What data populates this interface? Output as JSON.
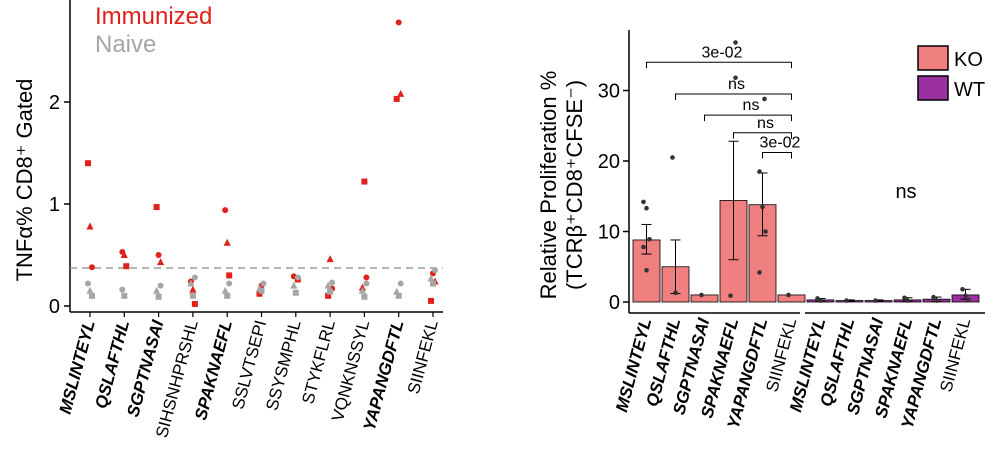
{
  "chart_data": [
    {
      "type": "scatter",
      "ylabel": "TNFα% CD8⁺ Gated",
      "ylim": [
        0,
        2.9
      ],
      "yticks": [
        0,
        1,
        2
      ],
      "threshold": 0.4,
      "legend": [
        {
          "name": "Immunized",
          "color": "#e0201c"
        },
        {
          "name": "Naive",
          "color": "#a6a6a6"
        }
      ],
      "categories": [
        {
          "name": "MSLINTEYL",
          "bold": true,
          "grey": false
        },
        {
          "name": "QSLAFTHL",
          "bold": true,
          "grey": false
        },
        {
          "name": "SGPTNASAI",
          "bold": true,
          "grey": false
        },
        {
          "name": "SIHSNHPRSHL",
          "bold": false,
          "grey": false
        },
        {
          "name": "SPAKNAEFL",
          "bold": true,
          "grey": false
        },
        {
          "name": "SSLVTSEPI",
          "bold": false,
          "grey": false
        },
        {
          "name": "SSYSMPHL",
          "bold": false,
          "grey": false
        },
        {
          "name": "STYKFLRL",
          "bold": false,
          "grey": false
        },
        {
          "name": "VQNKNSSYL",
          "bold": false,
          "grey": false
        },
        {
          "name": "YAPANGDFTL",
          "bold": true,
          "grey": false
        },
        {
          "name": "SIINFEKL",
          "bold": false,
          "grey": true
        }
      ],
      "series": [
        {
          "name": "Immunized",
          "color": "#e0201c",
          "points": [
            [
              0,
              1.4,
              "s"
            ],
            [
              0,
              0.78,
              "t"
            ],
            [
              0,
              0.38,
              "c"
            ],
            [
              1,
              0.53,
              "c"
            ],
            [
              1,
              0.5,
              "t"
            ],
            [
              1,
              0.39,
              "s"
            ],
            [
              2,
              0.97,
              "s"
            ],
            [
              2,
              0.5,
              "c"
            ],
            [
              2,
              0.43,
              "t"
            ],
            [
              3,
              0.24,
              "c"
            ],
            [
              3,
              0.16,
              "t"
            ],
            [
              3,
              0.02,
              "s"
            ],
            [
              4,
              0.94,
              "c"
            ],
            [
              4,
              0.62,
              "t"
            ],
            [
              4,
              0.3,
              "s"
            ],
            [
              5,
              0.12,
              "s"
            ],
            [
              5,
              0.2,
              "c"
            ],
            [
              6,
              0.26,
              "s"
            ],
            [
              6,
              0.29,
              "c"
            ],
            [
              7,
              0.46,
              "t"
            ],
            [
              7,
              0.17,
              "c"
            ],
            [
              7,
              0.1,
              "s"
            ],
            [
              8,
              1.22,
              "s"
            ],
            [
              8,
              0.28,
              "c"
            ],
            [
              8,
              0.18,
              "t"
            ],
            [
              9,
              2.78,
              "c"
            ],
            [
              9,
              2.08,
              "t"
            ],
            [
              9,
              2.03,
              "s"
            ],
            [
              10,
              0.32,
              "c"
            ],
            [
              10,
              0.24,
              "t"
            ],
            [
              10,
              0.05,
              "s"
            ]
          ]
        },
        {
          "name": "Naive",
          "color": "#a6a6a6",
          "points": [
            [
              0,
              0.22,
              "c"
            ],
            [
              0,
              0.15,
              "t"
            ],
            [
              0,
              0.1,
              "s"
            ],
            [
              1,
              0.16,
              "c"
            ],
            [
              1,
              0.1,
              "s"
            ],
            [
              2,
              0.2,
              "c"
            ],
            [
              2,
              0.15,
              "t"
            ],
            [
              2,
              0.09,
              "s"
            ],
            [
              3,
              0.28,
              "c"
            ],
            [
              3,
              0.22,
              "t"
            ],
            [
              3,
              0.1,
              "s"
            ],
            [
              4,
              0.22,
              "c"
            ],
            [
              4,
              0.15,
              "t"
            ],
            [
              4,
              0.1,
              "s"
            ],
            [
              5,
              0.22,
              "c"
            ],
            [
              5,
              0.17,
              "t"
            ],
            [
              5,
              0.15,
              "s"
            ],
            [
              6,
              0.28,
              "c"
            ],
            [
              6,
              0.2,
              "t"
            ],
            [
              6,
              0.13,
              "s"
            ],
            [
              7,
              0.23,
              "c"
            ],
            [
              7,
              0.2,
              "t"
            ],
            [
              7,
              0.14,
              "s"
            ],
            [
              8,
              0.22,
              "c"
            ],
            [
              8,
              0.15,
              "t"
            ],
            [
              8,
              0.09,
              "s"
            ],
            [
              9,
              0.22,
              "c"
            ],
            [
              9,
              0.14,
              "t"
            ],
            [
              9,
              0.1,
              "s"
            ],
            [
              10,
              0.35,
              "c"
            ],
            [
              10,
              0.27,
              "t"
            ],
            [
              10,
              0.22,
              "s"
            ]
          ]
        }
      ]
    },
    {
      "type": "bar",
      "ylabel_line1": "Relative Proliferation %",
      "ylabel_line2": "(TCRβ⁺CD8⁺CFSE⁻)",
      "ylim": [
        0,
        38
      ],
      "yticks": [
        0,
        10,
        20,
        30
      ],
      "legend": [
        {
          "name": "KO",
          "color": "#f08080"
        },
        {
          "name": "WT",
          "color": "#9b30a0"
        }
      ],
      "groups": [
        {
          "name": "KO",
          "color": "#f08080",
          "bars": [
            {
              "label": "MSLINTEYL",
              "bold": true,
              "mean": 8.8,
              "err": [
                6.8,
                11.0
              ],
              "points": [
                14.2,
                13.3,
                8.9,
                7.8,
                4.5
              ]
            },
            {
              "label": "QSLAFTHL",
              "bold": true,
              "mean": 5.0,
              "err": [
                1.2,
                8.8
              ],
              "points": [
                20.5,
                1.3
              ]
            },
            {
              "label": "SGPTNASAI",
              "bold": true,
              "mean": 1.0,
              "err": [
                1.0,
                1.0
              ],
              "points": [
                1.0
              ]
            },
            {
              "label": "SPAKNAEFL",
              "bold": true,
              "mean": 14.4,
              "err": [
                6.0,
                22.8
              ],
              "points": [
                0.9
              ]
            },
            {
              "label": "YAPANGDFTL",
              "bold": true,
              "mean": 13.8,
              "err": [
                9.4,
                18.3
              ],
              "points": [
                18.5,
                13.5,
                10.0,
                4.2
              ]
            },
            {
              "label": "SIINFEKL",
              "bold": false,
              "mean": 1.0,
              "err": [
                1.0,
                1.0
              ],
              "points": [
                1.0
              ]
            }
          ]
        },
        {
          "name": "WT",
          "color": "#9b30a0",
          "bars": [
            {
              "label": "MSLINTEYL",
              "bold": true,
              "mean": 0.3,
              "err": [
                0.1,
                0.5
              ],
              "points": [
                0.5,
                0.2
              ]
            },
            {
              "label": "QSLAFTHL",
              "bold": true,
              "mean": 0.2,
              "err": [
                0.1,
                0.3
              ],
              "points": [
                0.2
              ]
            },
            {
              "label": "SGPTNASAI",
              "bold": true,
              "mean": 0.2,
              "err": [
                0.1,
                0.3
              ],
              "points": [
                0.2
              ]
            },
            {
              "label": "SPAKNAEFL",
              "bold": true,
              "mean": 0.3,
              "err": [
                0.1,
                0.6
              ],
              "points": [
                0.6,
                0.2
              ]
            },
            {
              "label": "YAPANGDFTL",
              "bold": true,
              "mean": 0.4,
              "err": [
                0.1,
                0.7
              ],
              "points": [
                0.7,
                0.2
              ]
            },
            {
              "label": "SIINFEKL",
              "bold": false,
              "mean": 1.0,
              "err": [
                0.4,
                1.8
              ],
              "points": [
                1.8,
                0.9,
                0.3
              ]
            }
          ]
        }
      ],
      "outliers": [
        {
          "bar": 3,
          "value": 36.8
        },
        {
          "bar": 3,
          "value": 31.8
        },
        {
          "bar": 4,
          "value": 28.8
        }
      ],
      "comparisons": [
        {
          "from": 0,
          "to": 5,
          "value": 34.0,
          "label": "3e-02"
        },
        {
          "from": 1,
          "to": 5,
          "value": 29.5,
          "label": "ns"
        },
        {
          "from": 2,
          "to": 5,
          "value": 26.5,
          "label": "ns"
        },
        {
          "from": 3,
          "to": 5,
          "value": 24.0,
          "label": "ns"
        },
        {
          "from": 4,
          "to": 5,
          "value": 21.2,
          "label": "3e-02"
        }
      ],
      "wt_annotation": "ns"
    }
  ]
}
